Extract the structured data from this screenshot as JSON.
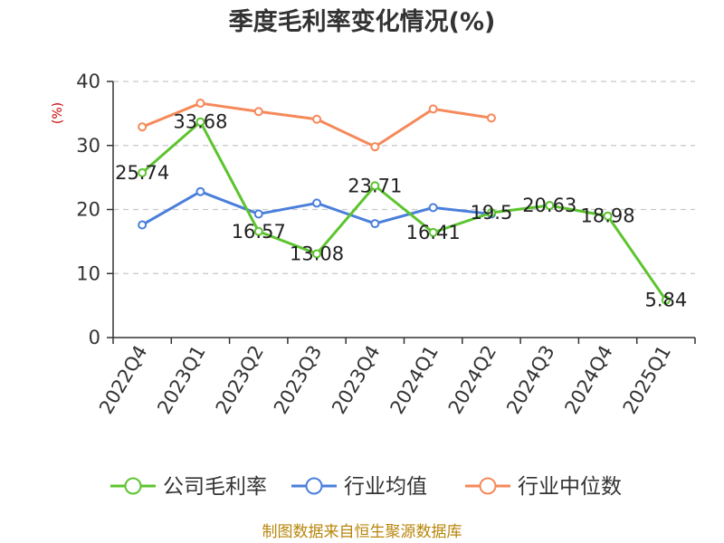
{
  "chart_data": {
    "type": "line",
    "title": "季度毛利率变化情况(%)",
    "ylabel": "(%)",
    "categories": [
      "2022Q4",
      "2023Q1",
      "2023Q2",
      "2023Q3",
      "2023Q4",
      "2024Q1",
      "2024Q2",
      "2024Q3",
      "2024Q4",
      "2025Q1"
    ],
    "ylim": [
      0,
      40
    ],
    "yticks": [
      "0",
      "10",
      "20",
      "30",
      "40"
    ],
    "grid": true,
    "legend_position": "bottom",
    "series": [
      {
        "name": "公司毛利率",
        "color": "#5cc42f",
        "values": [
          25.74,
          33.68,
          16.57,
          13.08,
          23.71,
          16.41,
          19.5,
          20.63,
          18.98,
          5.84
        ],
        "labels": [
          "25.74",
          "33.68",
          "16.57",
          "13.08",
          "23.71",
          "16.41",
          "19.5",
          "20.63",
          "18.98",
          "5.84"
        ]
      },
      {
        "name": "行业均值",
        "color": "#4a7fdb",
        "values": [
          17.6,
          22.8,
          19.3,
          21.0,
          17.8,
          20.3,
          19.3,
          null,
          null,
          null
        ]
      },
      {
        "name": "行业中位数",
        "color": "#f5895a",
        "values": [
          32.9,
          36.6,
          35.3,
          34.1,
          29.8,
          35.7,
          34.3,
          null,
          null,
          null
        ]
      }
    ],
    "source": "制图数据来自恒生聚源数据库"
  }
}
